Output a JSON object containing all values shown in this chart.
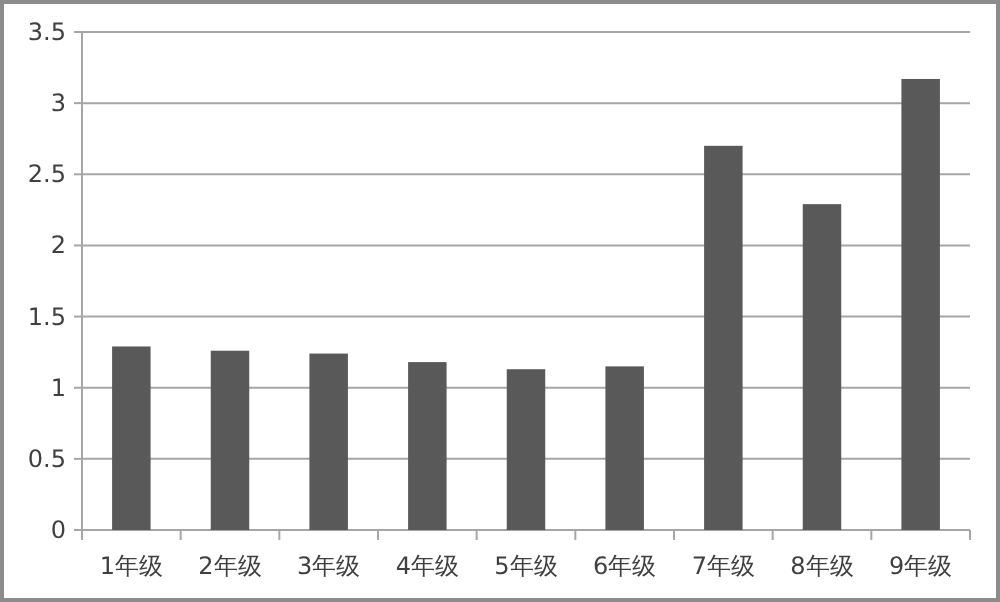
{
  "chart_data": {
    "type": "bar",
    "categories": [
      "1年级",
      "2年级",
      "3年级",
      "4年级",
      "5年级",
      "6年级",
      "7年级",
      "8年级",
      "9年级"
    ],
    "values": [
      1.29,
      1.26,
      1.24,
      1.18,
      1.13,
      1.15,
      2.7,
      2.29,
      3.17
    ],
    "color": "#595959",
    "ylim": [
      0,
      3.5
    ],
    "yticks": [
      0,
      0.5,
      1,
      1.5,
      2,
      2.5,
      3,
      3.5
    ],
    "grid": "y"
  }
}
